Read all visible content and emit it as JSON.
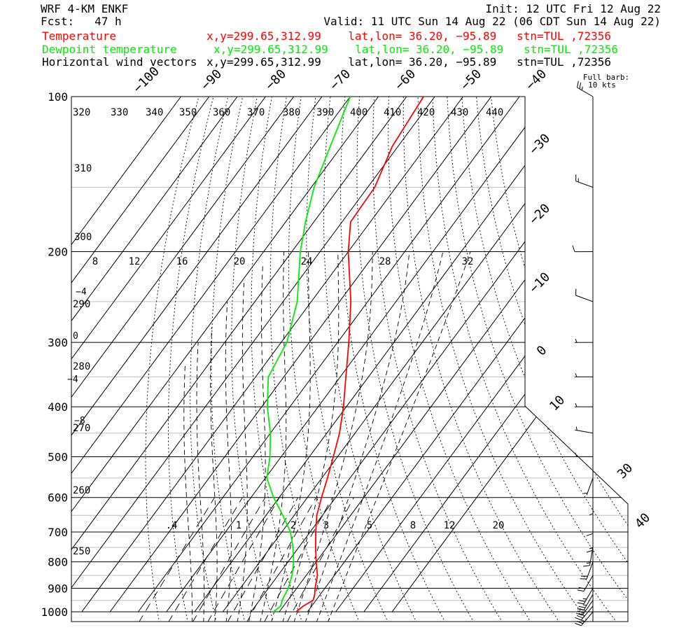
{
  "header": {
    "model": "WRF 4-KM ENKF",
    "fcst": "Fcst:   47 h",
    "init": "Init: 12 UTC Fri 12 Aug 22",
    "valid": "Valid: 11 UTC Sun 14 Aug 22 (06 CDT Sun 14 Aug 22)",
    "temp_label": "Temperature",
    "temp_info": "x,y=299.65,312.99    lat,lon= 36.20, −95.89   stn=TUL ,72356",
    "dew_label": "Dewpoint temperature",
    "dew_info": "x,y=299.65,312.99    lat,lon= 36.20, −95.89   stn=TUL ,72356",
    "wind_label": "Horizontal wind vectors",
    "wind_info": "x,y=299.65,312.99    lat,lon= 36.20, −95.89   stn=TUL ,72356",
    "barb_note_1": "Full barb:",
    "barb_note_2": "10 kts",
    "colors": {
      "temperature": "#ff0000",
      "dewpoint": "#00ee00",
      "text": "#000000"
    }
  },
  "chart_data": {
    "type": "line",
    "subtype": "skew-T log-P sounding",
    "y_axis": {
      "scale": "log",
      "units": "hPa",
      "range": [
        1000,
        100
      ],
      "ticks": [
        100,
        200,
        300,
        400,
        500,
        600,
        700,
        800,
        900,
        1000
      ]
    },
    "isotherm_labels": [
      "−100",
      "−90",
      "−80",
      "−70",
      "−60",
      "−50",
      "−40",
      "−30",
      "−20",
      "−10",
      "0",
      "10",
      "30",
      "40"
    ],
    "theta_labels": [
      "320",
      "330",
      "340",
      "350",
      "360",
      "370",
      "380",
      "390",
      "400",
      "410",
      "420",
      "430",
      "440",
      "310",
      "300",
      "290",
      "280",
      "270",
      "260",
      "250"
    ],
    "theta_e_labels": [
      "8",
      "12",
      "16",
      "20",
      "24",
      "28",
      "32"
    ],
    "left_temp_labels": [
      "−4",
      "0",
      "−4",
      "−8"
    ],
    "mixing_ratio_labels": [
      ".4",
      "1",
      "2",
      "3",
      "5",
      "8",
      "12",
      "20"
    ],
    "series": [
      {
        "name": "Temperature",
        "color": "#ff0000",
        "p": [
          1000,
          975,
          950,
          925,
          900,
          850,
          800,
          750,
          700,
          650,
          600,
          550,
          500,
          450,
          400,
          350,
          300,
          250,
          200,
          175,
          150,
          125,
          100
        ],
        "t": [
          26,
          27,
          29,
          28,
          26.5,
          24,
          20,
          16,
          12,
          8,
          5,
          2,
          -1.5,
          -5.5,
          -11,
          -18,
          -26,
          -36,
          -50,
          -57,
          -57.5,
          -62,
          -64
        ]
      },
      {
        "name": "Dewpoint temperature",
        "color": "#00ee00",
        "p": [
          1000,
          975,
          950,
          900,
          850,
          800,
          750,
          700,
          650,
          600,
          550,
          500,
          450,
          400,
          350,
          300,
          250,
          200,
          175,
          150,
          125,
          100
        ],
        "t": [
          18,
          19,
          18,
          17,
          15,
          12,
          8,
          3,
          -4,
          -12,
          -19.5,
          -24,
          -30,
          -38,
          -45.5,
          -48,
          -55,
          -67,
          -73,
          -79,
          -84,
          -90
        ]
      }
    ],
    "wind_barbs": {
      "units": "kts",
      "p": [
        100,
        150,
        200,
        250,
        300,
        350,
        400,
        450,
        500,
        550,
        600,
        650,
        700,
        750,
        800,
        850,
        900,
        925,
        950,
        975,
        1000
      ],
      "speed": [
        25,
        15,
        10,
        8,
        5,
        5,
        5,
        5,
        5,
        5,
        5,
        10,
        15,
        15,
        20,
        20,
        25,
        25,
        30,
        30,
        30
      ],
      "dir": [
        300,
        290,
        270,
        290,
        270,
        270,
        270,
        280,
        270,
        200,
        180,
        180,
        180,
        190,
        200,
        210,
        210,
        210,
        215,
        220,
        220
      ]
    }
  }
}
